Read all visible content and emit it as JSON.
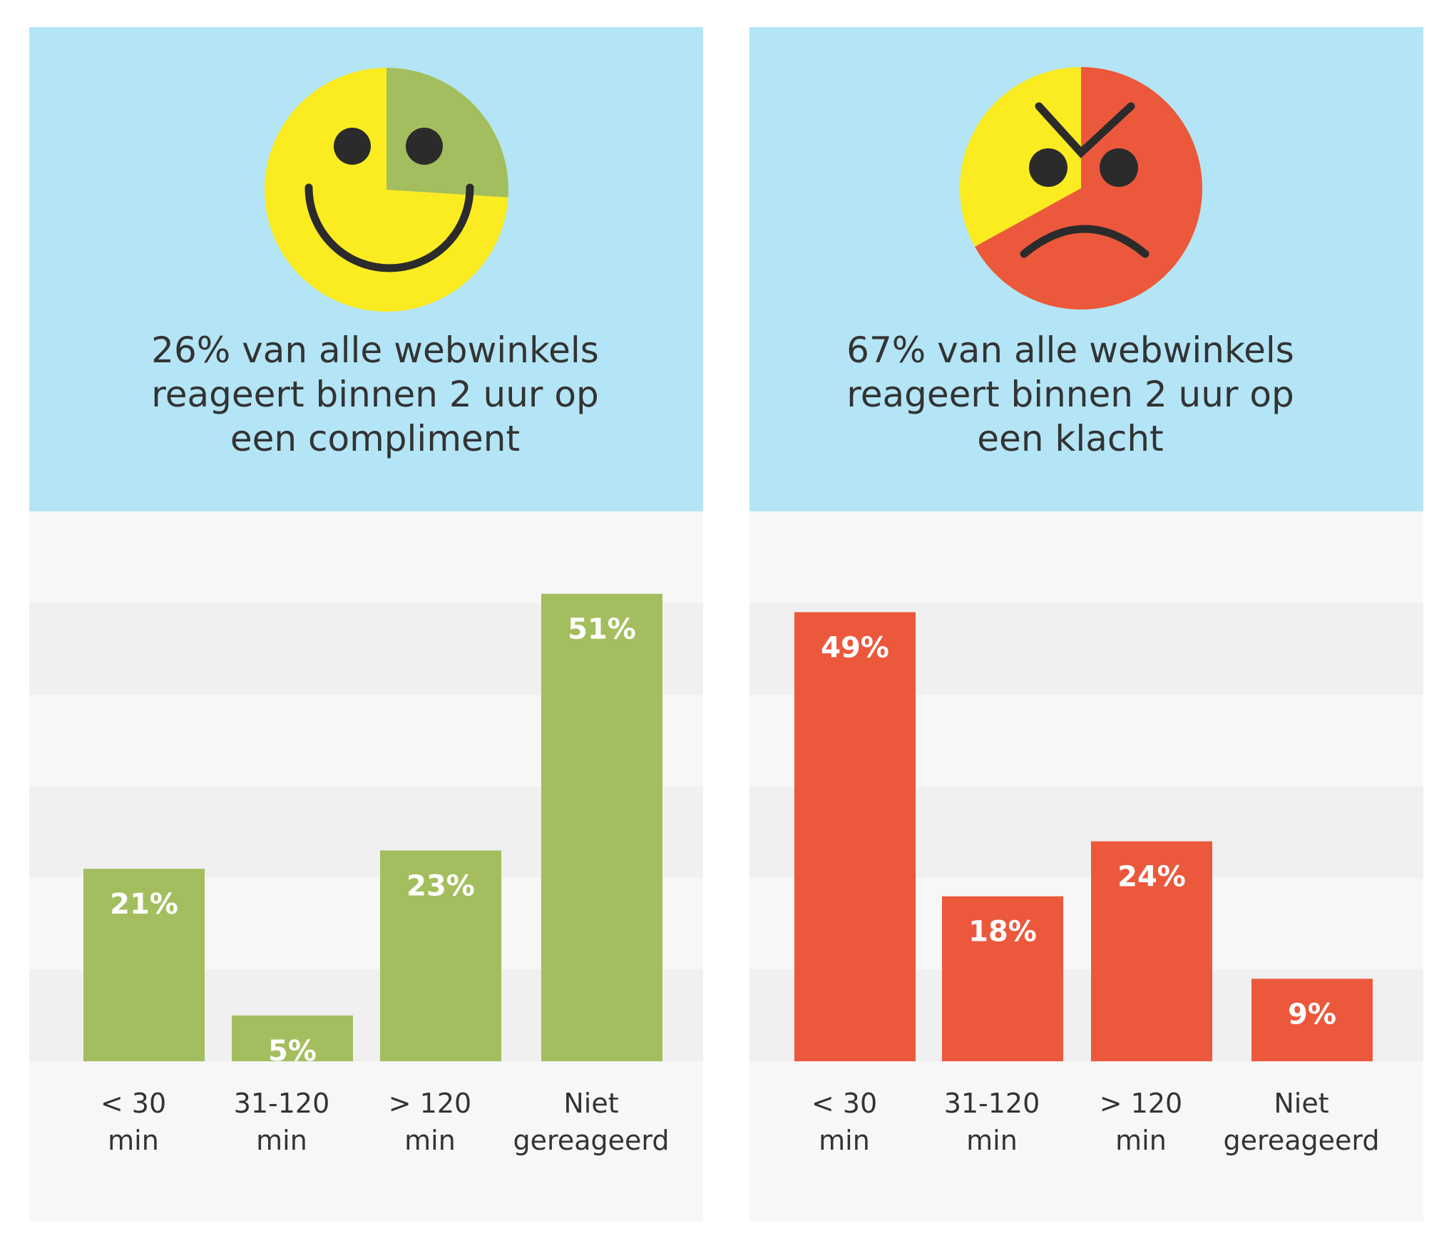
{
  "chart_data": [
    {
      "type": "bar",
      "title": "26% van alle webwinkels\nreageert binnen 2 uur op\neen compliment",
      "pie_share": 26,
      "pie_color": "#a3be5e",
      "face_color": "#fbec21",
      "categories": [
        "< 30\nmin",
        "31-120\nmin",
        "> 120\nmin",
        "Niet\ngereageerd"
      ],
      "values": [
        21,
        5,
        23,
        51
      ],
      "value_labels": [
        "21%",
        "5%",
        "23%",
        "51%"
      ],
      "color": "#a3be5e",
      "ylim": [
        0,
        60
      ],
      "yticks": [
        0,
        10,
        20,
        30,
        40,
        50,
        60
      ],
      "grid": true
    },
    {
      "type": "bar",
      "title": "67% van alle webwinkels\nreageert binnen 2 uur op\neen klacht",
      "pie_share": 67,
      "pie_color": "#ec583c",
      "face_color": "#fbec21",
      "categories": [
        "< 30\nmin",
        "31-120\nmin",
        "> 120\nmin",
        "Niet\ngereageerd"
      ],
      "values": [
        49,
        18,
        24,
        9
      ],
      "value_labels": [
        "49%",
        "18%",
        "24%",
        "9%"
      ],
      "color": "#ec583c",
      "ylim": [
        0,
        60
      ],
      "yticks": [
        0,
        10,
        20,
        30,
        40,
        50,
        60
      ],
      "grid": true
    }
  ]
}
